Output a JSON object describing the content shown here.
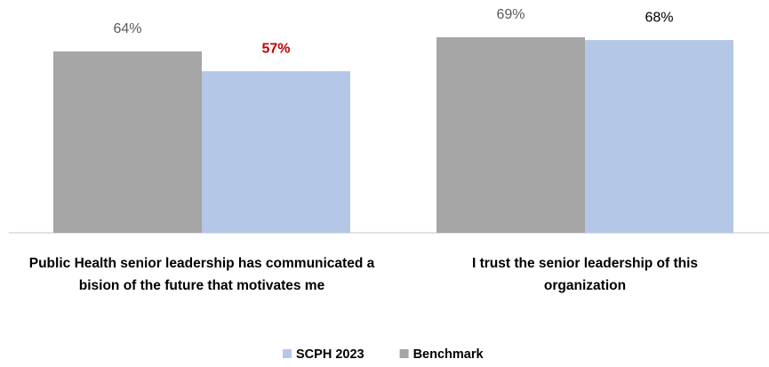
{
  "chart_data": {
    "type": "bar",
    "categories": [
      "Public Health senior leadership has communicated a bision of the future that motivates me",
      "I trust the senior leadership of this organization"
    ],
    "series": [
      {
        "name": "SCPH 2023",
        "color": "#b4c7e7",
        "values": [
          57,
          68
        ],
        "value_labels": [
          "57%",
          "68%"
        ],
        "label_colors": [
          "#c00000",
          "#000000"
        ],
        "label_bold": [
          true,
          false
        ]
      },
      {
        "name": "Benchmark",
        "color": "#a6a6a6",
        "values": [
          64,
          69
        ],
        "value_labels": [
          "64%",
          "69%"
        ],
        "label_colors": [
          "#595959",
          "#595959"
        ],
        "label_bold": [
          false,
          false
        ]
      }
    ],
    "legend": "bottom"
  }
}
